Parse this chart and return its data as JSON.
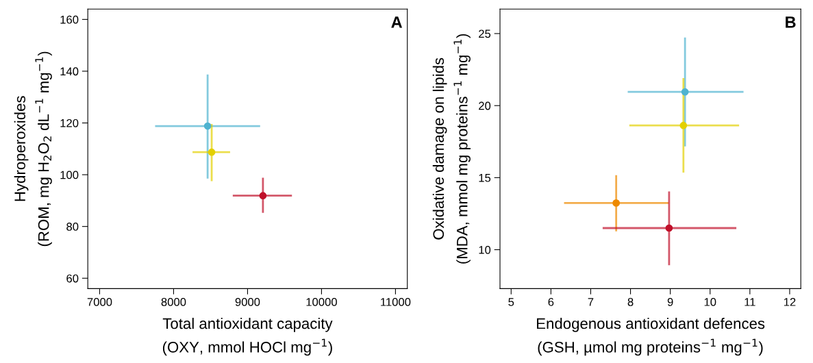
{
  "chart_data": [
    {
      "type": "scatter",
      "xlabel": "Total antioxidant capacity\n(OXY, mmol HOCl mg$^{−1}$)",
      "ylabel": "Hydroperoxides\n(ROM, mg H$_{2}$O$_{2}$ dL$^{−1}$ mg$^{−1}$)",
      "annotations": [
        "A"
      ],
      "marker": "circle",
      "grid": false,
      "legend": false,
      "xlim": [
        6840,
        11160
      ],
      "xticks": [
        7000,
        8000,
        9000,
        10000,
        11000
      ],
      "ylim": [
        56,
        164
      ],
      "yticks": [
        60,
        80,
        100,
        120,
        140,
        160
      ],
      "series": [
        {
          "color": "#4fb3d0",
          "x": [
            8460
          ],
          "values": [
            118.8
          ],
          "xerrors": [
            [
              7750,
              9170
            ]
          ],
          "errors": [
            [
              98.5,
              138.7
            ]
          ]
        },
        {
          "color": "#e3d000",
          "x": [
            8515
          ],
          "values": [
            108.7
          ],
          "xerrors": [
            [
              8256,
              8764
            ]
          ],
          "errors": [
            [
              97.5,
              119.6
            ]
          ]
        },
        {
          "color": "#c0102a",
          "x": [
            9208
          ],
          "values": [
            91.9
          ],
          "xerrors": [
            [
              8800,
              9600
            ]
          ],
          "errors": [
            [
              85.3,
              98.8
            ]
          ]
        }
      ]
    },
    {
      "type": "scatter",
      "xlabel": "Endogenous antioxidant defences\n(GSH, µmol mg proteins$^{−1}$ mg$^{−1}$)",
      "ylabel": "Oxidative damage on lipids\n(MDA, mmol mg proteins$^{−1}$ mg$^{−1}$)",
      "annotations": [
        "B"
      ],
      "marker": "circle",
      "grid": false,
      "legend": false,
      "xlim": [
        4.72,
        12.28
      ],
      "xticks": [
        5,
        6,
        7,
        8,
        9,
        10,
        11,
        12
      ],
      "ylim": [
        7.3,
        26.7
      ],
      "yticks": [
        10,
        15,
        20,
        25
      ],
      "series": [
        {
          "color": "#4fb3d0",
          "x": [
            9.37
          ],
          "values": [
            20.95
          ],
          "xerrors": [
            [
              7.93,
              10.84
            ]
          ],
          "errors": [
            [
              17.17,
              24.73
            ]
          ]
        },
        {
          "color": "#e3d000",
          "x": [
            9.33
          ],
          "values": [
            18.62
          ],
          "xerrors": [
            [
              7.97,
              10.73
            ]
          ],
          "errors": [
            [
              15.35,
              21.91
            ]
          ]
        },
        {
          "color": "#ee8a00",
          "x": [
            7.64
          ],
          "values": [
            13.24
          ],
          "xerrors": [
            [
              6.33,
              8.96
            ]
          ],
          "errors": [
            [
              11.27,
              15.17
            ]
          ]
        },
        {
          "color": "#c0102a",
          "x": [
            8.97
          ],
          "values": [
            11.5
          ],
          "xerrors": [
            [
              7.3,
              10.66
            ]
          ],
          "errors": [
            [
              8.92,
              14.04
            ]
          ]
        }
      ]
    }
  ]
}
